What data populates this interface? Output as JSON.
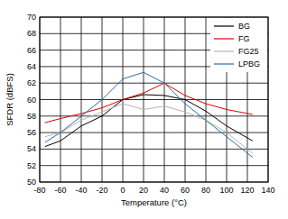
{
  "chart_data": {
    "type": "line",
    "x_label": "Temperature (°C)",
    "y_label": "SFDR (dBFS)",
    "x": [
      -75,
      -60,
      -40,
      -20,
      0,
      20,
      40,
      60,
      80,
      100,
      125
    ],
    "series": [
      {
        "name": "BG",
        "color": "#000000",
        "values": [
          54.3,
          55,
          56.8,
          58,
          60,
          60.6,
          60.5,
          60,
          58.6,
          56.8,
          55
        ]
      },
      {
        "name": "FG",
        "color": "#e00000",
        "values": [
          57.2,
          57.7,
          58.3,
          59,
          60,
          60.8,
          62,
          60.5,
          59.5,
          58.8,
          58.2
        ]
      },
      {
        "name": "FG25",
        "color": "#b4b4b4",
        "values": [
          55.5,
          56,
          57.5,
          58.5,
          59.5,
          58.8,
          59.2,
          58.5,
          57.5,
          56,
          53.5
        ]
      },
      {
        "name": "LPBG",
        "color": "#2a6ea8",
        "values": [
          54.8,
          56,
          58,
          60,
          62.5,
          63.3,
          62,
          59.5,
          57.5,
          55.5,
          53
        ]
      }
    ],
    "xlim": [
      -80,
      140
    ],
    "xticks": [
      -80,
      -60,
      -40,
      -20,
      0,
      20,
      40,
      60,
      80,
      100,
      120,
      140
    ],
    "ylim": [
      50,
      70
    ],
    "yticks": [
      50,
      52,
      54,
      56,
      58,
      60,
      62,
      64,
      66,
      68,
      70
    ],
    "grid": true,
    "legend": "upper right"
  }
}
